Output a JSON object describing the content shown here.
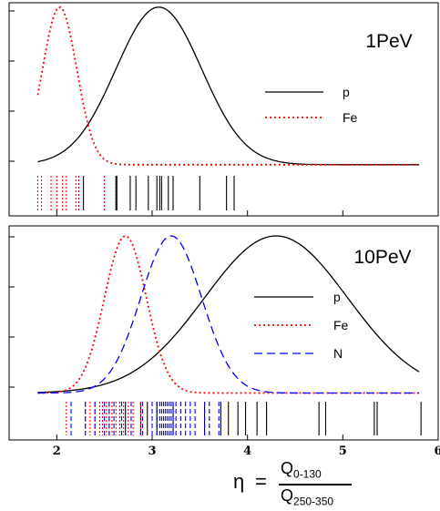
{
  "xlabel": {
    "symbol": "η",
    "equals": "=",
    "numerator_main": "Q",
    "numerator_sub": "0-130",
    "denominator_main": "Q",
    "denominator_sub": "250-350"
  },
  "colors": {
    "p": "#000000",
    "Fe": "#ff0000",
    "N": "#0000ff"
  },
  "chart_data": [
    {
      "type": "line",
      "panel_label": "1PeV",
      "xlim": [
        1.5,
        6.0
      ],
      "grid": false,
      "legend_placement": "right",
      "series": [
        {
          "name": "p",
          "color": "#000000",
          "style": "solid",
          "curve": {
            "mean": 3.07,
            "sigma": 0.45,
            "base": 0.03,
            "amp": 1.0,
            "x_min": 1.8,
            "x_max": 5.8
          },
          "events": [
            2.28,
            2.62,
            2.63,
            2.77,
            2.83,
            2.96,
            3.05,
            3.08,
            3.1,
            3.17,
            3.22,
            3.5,
            3.78,
            3.86
          ]
        },
        {
          "name": "Fe",
          "color": "#ff0000",
          "style": "dotted",
          "curve": {
            "mean": 2.03,
            "sigma": 0.18,
            "base": 0.03,
            "amp": 1.0,
            "x_min": 1.8,
            "x_max": 5.8
          },
          "events": [
            1.8,
            1.84,
            1.94,
            2.0,
            2.06,
            2.1,
            2.2,
            2.23,
            2.5
          ]
        }
      ]
    },
    {
      "type": "line",
      "panel_label": "10PeV",
      "xlim": [
        1.5,
        6.0
      ],
      "grid": false,
      "legend_placement": "right",
      "series": [
        {
          "name": "p",
          "color": "#000000",
          "style": "solid",
          "curve": {
            "mean": 4.3,
            "sigma": 0.75,
            "base": 0.02,
            "amp": 0.98,
            "x_min": 1.8,
            "x_max": 5.8
          },
          "events": [
            2.72,
            2.88,
            2.95,
            3.05,
            3.22,
            3.55,
            3.72,
            3.8,
            3.9,
            3.98,
            4.1,
            4.2,
            4.75,
            4.82,
            5.33,
            5.36,
            5.82
          ]
        },
        {
          "name": "Fe",
          "color": "#ff0000",
          "style": "dotted",
          "curve": {
            "mean": 2.72,
            "sigma": 0.22,
            "base": 0.02,
            "amp": 0.98,
            "x_min": 1.8,
            "x_max": 5.8
          },
          "events": [
            2.1,
            2.3,
            2.35,
            2.4,
            2.45,
            2.48,
            2.52,
            2.55,
            2.58,
            2.62,
            2.66,
            2.7,
            2.75,
            2.8,
            2.88
          ]
        },
        {
          "name": "N",
          "color": "#0000ff",
          "style": "dashed",
          "curve": {
            "mean": 3.2,
            "sigma": 0.32,
            "base": 0.02,
            "amp": 0.98,
            "x_min": 1.8,
            "x_max": 5.8
          },
          "events": [
            2.15,
            2.3,
            2.4,
            2.5,
            2.55,
            2.6,
            2.68,
            2.72,
            2.78,
            2.9,
            3.0,
            3.05,
            3.08,
            3.1,
            3.12,
            3.14,
            3.16,
            3.18,
            3.2,
            3.22,
            3.25,
            3.3,
            3.35,
            3.4,
            3.45,
            3.55,
            3.6,
            3.7
          ]
        }
      ]
    }
  ],
  "x_tick_labels": [
    "2",
    "3",
    "4",
    "5",
    "6"
  ]
}
